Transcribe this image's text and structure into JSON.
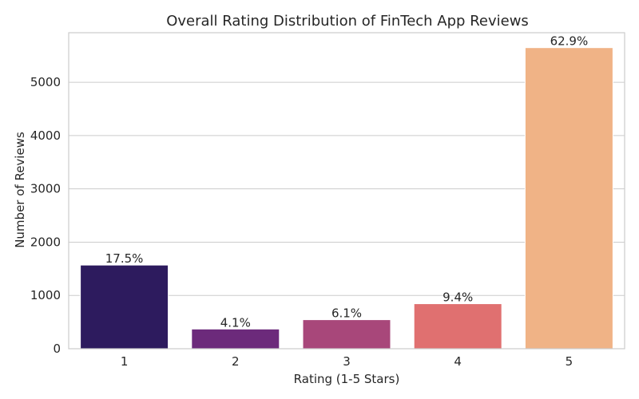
{
  "chart_data": {
    "type": "bar",
    "title": "Overall Rating Distribution of FinTech App Reviews",
    "xlabel": "Rating (1-5 Stars)",
    "ylabel": "Number of Reviews",
    "categories": [
      "1",
      "2",
      "3",
      "4",
      "5"
    ],
    "values": [
      1570,
      370,
      545,
      845,
      5650
    ],
    "data_labels": [
      "17.5%",
      "4.1%",
      "6.1%",
      "9.4%",
      "62.9%"
    ],
    "colors": [
      "#2d1b5e",
      "#6c2a7b",
      "#a8477a",
      "#e07070",
      "#f0b386"
    ],
    "ylim": [
      0,
      5930
    ],
    "yticks": [
      0,
      1000,
      2000,
      3000,
      4000,
      5000
    ],
    "grid": "horizontal",
    "legend": "none"
  }
}
